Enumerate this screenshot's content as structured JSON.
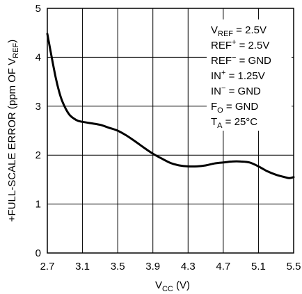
{
  "chart_data": {
    "type": "line",
    "title": "",
    "xlabel": {
      "main": "V",
      "sub": "CC",
      "unit": " (V)"
    },
    "ylabel": {
      "main": "+FULL-SCALE ERROR (ppm OF V",
      "sub": "REF",
      "end": ")"
    },
    "xlim": [
      2.7,
      5.5
    ],
    "ylim": [
      0,
      5
    ],
    "xticks": [
      "2.7",
      "3.1",
      "3.5",
      "3.9",
      "4.3",
      "4.7",
      "5.1",
      "5.5"
    ],
    "yticks": [
      "0",
      "1",
      "2",
      "3",
      "4",
      "5"
    ],
    "grid": true,
    "annotations": [
      {
        "main": "V",
        "sub": "REF",
        "sup": "",
        "tail": " = 2.5V"
      },
      {
        "main": "REF",
        "sub": "",
        "sup": "+",
        "tail": " = 2.5V"
      },
      {
        "main": "REF",
        "sub": "",
        "sup": "−",
        "tail": " = GND"
      },
      {
        "main": "IN",
        "sub": "",
        "sup": "+",
        "tail": " = 1.25V"
      },
      {
        "main": "IN",
        "sub": "",
        "sup": "−",
        "tail": " = GND"
      },
      {
        "main": "F",
        "sub": "O",
        "sup": "",
        "tail": " = GND"
      },
      {
        "main": "T",
        "sub": "A",
        "sup": "",
        "tail": " = 25°C"
      }
    ],
    "series": [
      {
        "x": [
          2.7,
          2.75,
          2.8,
          2.85,
          2.9,
          2.95,
          3.0,
          3.05,
          3.1,
          3.2,
          3.3,
          3.4,
          3.5,
          3.6,
          3.7,
          3.8,
          3.9,
          4.0,
          4.1,
          4.2,
          4.3,
          4.4,
          4.5,
          4.6,
          4.7,
          4.8,
          4.9,
          5.0,
          5.1,
          5.2,
          5.3,
          5.4,
          5.45,
          5.5
        ],
        "values": [
          4.48,
          4.0,
          3.55,
          3.2,
          2.98,
          2.83,
          2.75,
          2.7,
          2.68,
          2.65,
          2.62,
          2.56,
          2.5,
          2.4,
          2.28,
          2.15,
          2.03,
          1.93,
          1.84,
          1.79,
          1.77,
          1.77,
          1.79,
          1.83,
          1.85,
          1.87,
          1.87,
          1.85,
          1.77,
          1.67,
          1.6,
          1.55,
          1.53,
          1.55
        ]
      }
    ]
  }
}
